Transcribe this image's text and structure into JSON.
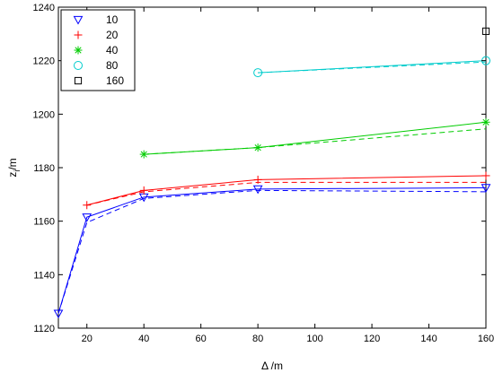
{
  "chart_data": {
    "type": "line",
    "xlabel": "Δ /m",
    "ylabel_main": "z",
    "ylabel_sub": "i",
    "ylabel_unit": "/m",
    "xlim": [
      10,
      160
    ],
    "ylim": [
      1120,
      1240
    ],
    "xticks": [
      20,
      40,
      60,
      80,
      100,
      120,
      140,
      160
    ],
    "yticks": [
      1120,
      1140,
      1160,
      1180,
      1200,
      1220,
      1240
    ],
    "grid": false,
    "legend_position": "top-left",
    "series": [
      {
        "name": "10",
        "color": "#0000ff",
        "marker": "triangle-down",
        "x": [
          10,
          20,
          40,
          80,
          160
        ],
        "y": [
          1125.5,
          1161.5,
          1169,
          1172,
          1172.5
        ],
        "solid": [
          [
            10,
            1125.5
          ],
          [
            20,
            1161.5
          ],
          [
            40,
            1169
          ],
          [
            80,
            1172
          ],
          [
            160,
            1172.5
          ]
        ],
        "dashed": [
          [
            10,
            1125.5
          ],
          [
            20,
            1159.5
          ],
          [
            40,
            1168.5
          ],
          [
            80,
            1171.5
          ],
          [
            160,
            1171
          ]
        ]
      },
      {
        "name": "20",
        "color": "#ff0000",
        "marker": "plus",
        "x": [
          20,
          40,
          80,
          160
        ],
        "y": [
          1166,
          1171.5,
          1175.5,
          1177
        ],
        "solid": [
          [
            20,
            1166
          ],
          [
            40,
            1171.5
          ],
          [
            80,
            1175.5
          ],
          [
            160,
            1177
          ]
        ],
        "dashed": [
          [
            20,
            1166
          ],
          [
            40,
            1171
          ],
          [
            80,
            1174.5
          ],
          [
            160,
            1174.5
          ]
        ]
      },
      {
        "name": "40",
        "color": "#00cc00",
        "marker": "asterisk",
        "x": [
          40,
          80,
          160
        ],
        "y": [
          1185,
          1187.5,
          1197
        ],
        "solid": [
          [
            40,
            1185
          ],
          [
            80,
            1187.5
          ],
          [
            160,
            1197
          ]
        ],
        "dashed": [
          [
            40,
            1185
          ],
          [
            80,
            1187.5
          ],
          [
            160,
            1194.5
          ]
        ]
      },
      {
        "name": "80",
        "color": "#00cccc",
        "marker": "circle",
        "x": [
          80,
          160
        ],
        "y": [
          1215.5,
          1220
        ],
        "solid": [
          [
            80,
            1215.5
          ],
          [
            160,
            1220
          ]
        ],
        "dashed": [
          [
            80,
            1215.5
          ],
          [
            160,
            1219.5
          ]
        ]
      },
      {
        "name": "160",
        "color": "#000000",
        "marker": "square",
        "x": [
          160
        ],
        "y": [
          1231
        ],
        "solid": [
          [
            160,
            1231
          ]
        ],
        "dashed": []
      }
    ]
  }
}
